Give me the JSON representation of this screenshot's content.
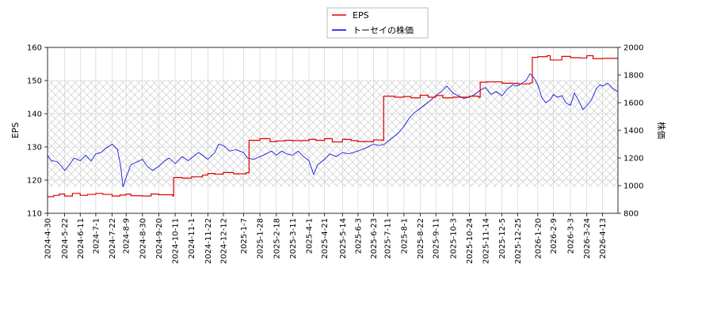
{
  "chart_data": {
    "type": "line",
    "title": "",
    "xlabel": "",
    "ylabel_left": "EPS",
    "ylabel_right": "株価",
    "ylim_left": [
      110,
      160
    ],
    "yticks_left": [
      110,
      120,
      130,
      140,
      150,
      160
    ],
    "ylim_right": [
      800,
      2000
    ],
    "yticks_right": [
      800,
      1000,
      1200,
      1400,
      1600,
      1800,
      2000
    ],
    "x_range": [
      "2024-04-30",
      "2026-05-03"
    ],
    "x_ticks": [
      "2024-4-30",
      "2024-5-22",
      "2024-6-11",
      "2024-7-1",
      "2024-7-22",
      "2024-8-9",
      "2024-8-30",
      "2024-9-20",
      "2024-10-11",
      "2024-11-1",
      "2024-11-22",
      "2024-12-12",
      "2025-1-7",
      "2025-1-28",
      "2025-2-18",
      "2025-3-11",
      "2025-4-1",
      "2025-4-21",
      "2025-5-14",
      "2025-6-3",
      "2025-6-23",
      "2025-7-11",
      "2025-8-1",
      "2025-8-22",
      "2025-9-11",
      "2025-10-3",
      "2025-10-24",
      "2025-11-14",
      "2025-12-5",
      "2025-12-25",
      "2026-1-20",
      "2026-2-9",
      "2026-3-3",
      "2026-3-24",
      "2026-4-13"
    ],
    "grid": true,
    "hatched_band_left": [
      118,
      150
    ],
    "legend_position": "top-center",
    "colors": {
      "eps": "#dd0000",
      "price": "#0000dd",
      "grid": "#cccccc",
      "hatch": "#cccccc"
    },
    "series": [
      {
        "name": "EPS",
        "axis": "left",
        "color": "#dd0000",
        "points": [
          [
            "2024-04-30",
            115.0
          ],
          [
            "2024-05-08",
            115.4
          ],
          [
            "2024-05-15",
            115.8
          ],
          [
            "2024-05-22",
            115.2
          ],
          [
            "2024-06-01",
            116.0
          ],
          [
            "2024-06-11",
            115.4
          ],
          [
            "2024-06-20",
            115.7
          ],
          [
            "2024-07-01",
            116.0
          ],
          [
            "2024-07-10",
            115.7
          ],
          [
            "2024-07-22",
            115.2
          ],
          [
            "2024-08-01",
            115.5
          ],
          [
            "2024-08-09",
            115.8
          ],
          [
            "2024-08-15",
            115.3
          ],
          [
            "2024-08-30",
            115.2
          ],
          [
            "2024-09-10",
            115.8
          ],
          [
            "2024-09-20",
            115.6
          ],
          [
            "2024-10-08",
            115.2
          ],
          [
            "2024-10-09",
            120.8
          ],
          [
            "2024-10-20",
            120.6
          ],
          [
            "2024-11-01",
            121.0
          ],
          [
            "2024-11-15",
            121.5
          ],
          [
            "2024-11-22",
            122.0
          ],
          [
            "2024-12-01",
            121.8
          ],
          [
            "2024-12-12",
            122.3
          ],
          [
            "2024-12-25",
            121.9
          ],
          [
            "2025-01-10",
            122.2
          ],
          [
            "2025-01-14",
            132.0
          ],
          [
            "2025-01-28",
            132.5
          ],
          [
            "2025-02-10",
            131.6
          ],
          [
            "2025-02-18",
            131.8
          ],
          [
            "2025-03-01",
            132.0
          ],
          [
            "2025-03-11",
            131.9
          ],
          [
            "2025-04-01",
            132.3
          ],
          [
            "2025-04-10",
            132.0
          ],
          [
            "2025-04-21",
            132.5
          ],
          [
            "2025-05-01",
            131.5
          ],
          [
            "2025-05-14",
            132.3
          ],
          [
            "2025-05-25",
            131.9
          ],
          [
            "2025-06-03",
            131.6
          ],
          [
            "2025-06-23",
            132.1
          ],
          [
            "2025-07-04",
            132.0
          ],
          [
            "2025-07-06",
            145.3
          ],
          [
            "2025-07-20",
            145.0
          ],
          [
            "2025-08-01",
            145.2
          ],
          [
            "2025-08-10",
            144.8
          ],
          [
            "2025-08-22",
            145.6
          ],
          [
            "2025-09-01",
            145.0
          ],
          [
            "2025-09-11",
            145.5
          ],
          [
            "2025-09-20",
            144.8
          ],
          [
            "2025-10-03",
            145.0
          ],
          [
            "2025-10-24",
            145.3
          ],
          [
            "2025-11-05",
            145.0
          ],
          [
            "2025-11-07",
            149.5
          ],
          [
            "2025-11-14",
            149.6
          ],
          [
            "2025-12-05",
            149.2
          ],
          [
            "2025-12-25",
            149.0
          ],
          [
            "2026-01-10",
            149.3
          ],
          [
            "2026-01-13",
            157.0
          ],
          [
            "2026-01-20",
            157.2
          ],
          [
            "2026-02-01",
            157.5
          ],
          [
            "2026-02-05",
            156.2
          ],
          [
            "2026-02-20",
            157.3
          ],
          [
            "2026-03-03",
            156.9
          ],
          [
            "2026-03-15",
            156.8
          ],
          [
            "2026-03-24",
            157.5
          ],
          [
            "2026-04-01",
            156.6
          ],
          [
            "2026-04-13",
            156.7
          ],
          [
            "2026-05-03",
            156.7
          ]
        ]
      },
      {
        "name": "トーセイの株価",
        "axis": "right",
        "color": "#0000dd",
        "points": [
          [
            "2024-04-30",
            1220
          ],
          [
            "2024-05-05",
            1180
          ],
          [
            "2024-05-12",
            1175
          ],
          [
            "2024-05-18",
            1140
          ],
          [
            "2024-05-22",
            1110
          ],
          [
            "2024-05-28",
            1150
          ],
          [
            "2024-06-03",
            1200
          ],
          [
            "2024-06-11",
            1180
          ],
          [
            "2024-06-18",
            1220
          ],
          [
            "2024-06-25",
            1180
          ],
          [
            "2024-07-01",
            1230
          ],
          [
            "2024-07-08",
            1240
          ],
          [
            "2024-07-14",
            1270
          ],
          [
            "2024-07-22",
            1300
          ],
          [
            "2024-07-29",
            1260
          ],
          [
            "2024-08-02",
            1140
          ],
          [
            "2024-08-05",
            990
          ],
          [
            "2024-08-09",
            1060
          ],
          [
            "2024-08-15",
            1150
          ],
          [
            "2024-08-22",
            1170
          ],
          [
            "2024-08-30",
            1190
          ],
          [
            "2024-09-05",
            1140
          ],
          [
            "2024-09-12",
            1110
          ],
          [
            "2024-09-20",
            1140
          ],
          [
            "2024-09-28",
            1180
          ],
          [
            "2024-10-03",
            1200
          ],
          [
            "2024-10-11",
            1160
          ],
          [
            "2024-10-20",
            1210
          ],
          [
            "2024-10-28",
            1180
          ],
          [
            "2024-11-01",
            1200
          ],
          [
            "2024-11-10",
            1240
          ],
          [
            "2024-11-15",
            1220
          ],
          [
            "2024-11-22",
            1190
          ],
          [
            "2024-12-01",
            1240
          ],
          [
            "2024-12-06",
            1300
          ],
          [
            "2024-12-12",
            1290
          ],
          [
            "2024-12-20",
            1250
          ],
          [
            "2024-12-28",
            1260
          ],
          [
            "2025-01-07",
            1240
          ],
          [
            "2025-01-12",
            1200
          ],
          [
            "2025-01-20",
            1190
          ],
          [
            "2025-01-28",
            1210
          ],
          [
            "2025-02-05",
            1230
          ],
          [
            "2025-02-12",
            1250
          ],
          [
            "2025-02-18",
            1220
          ],
          [
            "2025-02-25",
            1250
          ],
          [
            "2025-03-03",
            1230
          ],
          [
            "2025-03-11",
            1220
          ],
          [
            "2025-03-18",
            1250
          ],
          [
            "2025-03-25",
            1210
          ],
          [
            "2025-04-01",
            1180
          ],
          [
            "2025-04-07",
            1080
          ],
          [
            "2025-04-12",
            1150
          ],
          [
            "2025-04-21",
            1190
          ],
          [
            "2025-04-28",
            1230
          ],
          [
            "2025-05-06",
            1210
          ],
          [
            "2025-05-14",
            1240
          ],
          [
            "2025-05-22",
            1230
          ],
          [
            "2025-06-03",
            1250
          ],
          [
            "2025-06-12",
            1270
          ],
          [
            "2025-06-23",
            1300
          ],
          [
            "2025-06-30",
            1290
          ],
          [
            "2025-07-07",
            1300
          ],
          [
            "2025-07-11",
            1320
          ],
          [
            "2025-07-18",
            1350
          ],
          [
            "2025-07-25",
            1380
          ],
          [
            "2025-08-01",
            1430
          ],
          [
            "2025-08-08",
            1490
          ],
          [
            "2025-08-15",
            1530
          ],
          [
            "2025-08-22",
            1560
          ],
          [
            "2025-08-29",
            1590
          ],
          [
            "2025-09-05",
            1620
          ],
          [
            "2025-09-11",
            1650
          ],
          [
            "2025-09-18",
            1680
          ],
          [
            "2025-09-25",
            1720
          ],
          [
            "2025-10-03",
            1670
          ],
          [
            "2025-10-10",
            1650
          ],
          [
            "2025-10-17",
            1630
          ],
          [
            "2025-10-24",
            1640
          ],
          [
            "2025-10-31",
            1660
          ],
          [
            "2025-11-07",
            1690
          ],
          [
            "2025-11-14",
            1710
          ],
          [
            "2025-11-21",
            1660
          ],
          [
            "2025-11-28",
            1680
          ],
          [
            "2025-12-05",
            1650
          ],
          [
            "2025-12-12",
            1700
          ],
          [
            "2025-12-19",
            1730
          ],
          [
            "2025-12-25",
            1720
          ],
          [
            "2026-01-05",
            1760
          ],
          [
            "2026-01-10",
            1810
          ],
          [
            "2026-01-15",
            1780
          ],
          [
            "2026-01-20",
            1730
          ],
          [
            "2026-01-25",
            1640
          ],
          [
            "2026-01-30",
            1600
          ],
          [
            "2026-02-05",
            1620
          ],
          [
            "2026-02-09",
            1660
          ],
          [
            "2026-02-14",
            1640
          ],
          [
            "2026-02-20",
            1650
          ],
          [
            "2026-02-25",
            1600
          ],
          [
            "2026-03-03",
            1580
          ],
          [
            "2026-03-08",
            1670
          ],
          [
            "2026-03-14",
            1610
          ],
          [
            "2026-03-19",
            1550
          ],
          [
            "2026-03-24",
            1580
          ],
          [
            "2026-03-30",
            1620
          ],
          [
            "2026-04-05",
            1700
          ],
          [
            "2026-04-10",
            1730
          ],
          [
            "2026-04-13",
            1720
          ],
          [
            "2026-04-20",
            1740
          ],
          [
            "2026-04-27",
            1700
          ],
          [
            "2026-05-03",
            1680
          ]
        ]
      }
    ]
  }
}
